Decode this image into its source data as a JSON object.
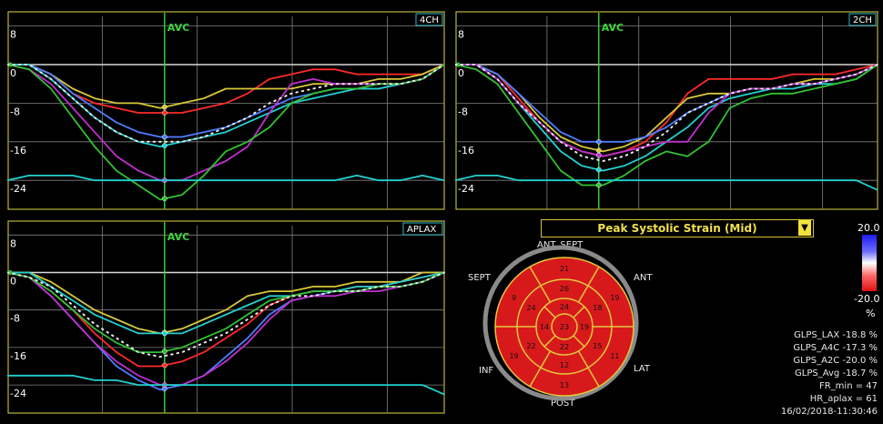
{
  "colors": {
    "frame": "#b9b53a",
    "grid": "#808080",
    "avc": "#39d83a",
    "bullseye_red": "#d8191c",
    "bullseye_line": "#e2c93c",
    "title_text": "#f0e04a"
  },
  "y_tick_labels": [
    "8",
    "0",
    "-8",
    "-16",
    "-24"
  ],
  "avc_label": "AVC",
  "views": {
    "four_ch": "4CH",
    "two_ch": "2CH",
    "aplax": "APLAX"
  },
  "bullseye": {
    "title": "Peak Systolic Strain (Mid)",
    "dropdown_icon": "dropdown-triangle-icon",
    "scale_max": "20.0",
    "scale_min": "-20.0",
    "scale_unit": "%",
    "walls": {
      "ant_sept": "ANT_SEPT",
      "sept": "SEPT",
      "ant": "ANT",
      "inf": "INF",
      "lat": "LAT",
      "post": "POST"
    },
    "segments": {
      "basal": [
        "21",
        "19",
        "11",
        "13",
        "19",
        "9"
      ],
      "mid": [
        "26",
        "18",
        "15",
        "12",
        "22",
        "24"
      ],
      "apical": [
        "24",
        "19",
        "22",
        "14"
      ],
      "apex": "23"
    }
  },
  "stats": [
    "GLPS_LAX  -18.8 %",
    "GLPS_A4C  -17.3 %",
    "GLPS_A2C  -20.0 %",
    "GLPS_Avg  -18.7 %",
    "FR_min = 47",
    "HR_aplax = 61",
    "16/02/2018-11:30:46"
  ],
  "chart_data": [
    {
      "type": "line",
      "view": "4CH",
      "ylim": [
        -30,
        10
      ],
      "yticks": [
        8,
        0,
        -8,
        -16,
        -24
      ],
      "x": [
        0,
        5,
        10,
        15,
        20,
        25,
        30,
        35,
        40,
        45,
        50,
        55,
        60,
        65,
        70,
        75,
        80,
        85,
        90,
        95,
        100
      ],
      "avc_x": 36,
      "series": [
        {
          "color": "#ff2a2a",
          "values": [
            0,
            0,
            -2,
            -6,
            -8,
            -9,
            -10,
            -10,
            -10,
            -9,
            -8,
            -6,
            -3,
            -2,
            -1,
            -1,
            -2,
            -2,
            -2,
            -2,
            0
          ]
        },
        {
          "color": "#d8c838",
          "values": [
            0,
            0,
            -2,
            -5,
            -7,
            -8,
            -8,
            -9,
            -8,
            -7,
            -5,
            -5,
            -5,
            -5,
            -4,
            -4,
            -4,
            -3,
            -3,
            -2,
            0
          ]
        },
        {
          "color": "#4f7dff",
          "values": [
            0,
            0,
            -2,
            -6,
            -9,
            -12,
            -14,
            -15,
            -15,
            -14,
            -13,
            -11,
            -9,
            -7,
            -6,
            -5,
            -5,
            -5,
            -4,
            -3,
            0
          ]
        },
        {
          "color": "#22d0d0",
          "values": [
            0,
            0,
            -3,
            -7,
            -11,
            -14,
            -16,
            -17,
            -16,
            -15,
            -14,
            -12,
            -10,
            -8,
            -7,
            -6,
            -5,
            -5,
            -4,
            -3,
            0
          ]
        },
        {
          "color": "#c12fd0",
          "values": [
            0,
            -1,
            -4,
            -9,
            -14,
            -19,
            -22,
            -24,
            -24,
            -22,
            -20,
            -17,
            -10,
            -4,
            -3,
            -4,
            -4,
            -4,
            -4,
            -3,
            0
          ]
        },
        {
          "color": "#31c231",
          "values": [
            0,
            -1,
            -5,
            -11,
            -17,
            -22,
            -25,
            -28,
            -27,
            -23,
            -18,
            -16,
            -13,
            -8,
            -6,
            -5,
            -5,
            -4,
            -4,
            -3,
            0
          ]
        },
        {
          "color": "#e8e8e8",
          "dotted": true,
          "values": [
            0,
            0,
            -3,
            -7,
            -11,
            -14,
            -16,
            -16,
            -16,
            -15,
            -13,
            -11,
            -8,
            -6,
            -5,
            -4,
            -4,
            -4,
            -4,
            -3,
            0
          ]
        },
        {
          "color": "#22d0d0",
          "values": [
            -24,
            -23,
            -23,
            -23,
            -24,
            -24,
            -24,
            -24,
            -24,
            -24,
            -24,
            -24,
            -24,
            -24,
            -24,
            -24,
            -23,
            -24,
            -24,
            -23,
            -24
          ]
        }
      ]
    },
    {
      "type": "line",
      "view": "2CH",
      "ylim": [
        -30,
        10
      ],
      "yticks": [
        8,
        0,
        -8,
        -16,
        -24
      ],
      "x": [
        0,
        5,
        10,
        15,
        20,
        25,
        30,
        35,
        40,
        45,
        50,
        55,
        60,
        65,
        70,
        75,
        80,
        85,
        90,
        95,
        100
      ],
      "avc_x": 34,
      "series": [
        {
          "color": "#ff2a2a",
          "values": [
            0,
            0,
            -2,
            -7,
            -12,
            -16,
            -18,
            -19,
            -18,
            -16,
            -12,
            -6,
            -3,
            -3,
            -3,
            -3,
            -2,
            -2,
            -2,
            -1,
            0
          ]
        },
        {
          "color": "#d8c838",
          "values": [
            0,
            0,
            -2,
            -6,
            -11,
            -15,
            -17,
            -18,
            -17,
            -15,
            -11,
            -7,
            -6,
            -6,
            -5,
            -5,
            -4,
            -3,
            -3,
            -2,
            0
          ]
        },
        {
          "color": "#4f7dff",
          "values": [
            0,
            0,
            -2,
            -6,
            -10,
            -14,
            -16,
            -16,
            -16,
            -15,
            -13,
            -10,
            -8,
            -6,
            -5,
            -5,
            -4,
            -4,
            -3,
            -2,
            0
          ]
        },
        {
          "color": "#22d0d0",
          "values": [
            0,
            0,
            -3,
            -8,
            -13,
            -18,
            -21,
            -22,
            -21,
            -19,
            -16,
            -13,
            -9,
            -7,
            -6,
            -5,
            -5,
            -4,
            -4,
            -3,
            0
          ]
        },
        {
          "color": "#c12fd0",
          "values": [
            0,
            0,
            -3,
            -8,
            -12,
            -16,
            -18,
            -19,
            -18,
            -17,
            -16,
            -16,
            -10,
            -6,
            -5,
            -5,
            -4,
            -4,
            -3,
            -2,
            0
          ]
        },
        {
          "color": "#31c231",
          "values": [
            0,
            -1,
            -4,
            -10,
            -16,
            -22,
            -25,
            -25,
            -23,
            -20,
            -18,
            -19,
            -16,
            -9,
            -7,
            -6,
            -6,
            -5,
            -4,
            -3,
            0
          ]
        },
        {
          "color": "#e8e8e8",
          "dotted": true,
          "values": [
            0,
            0,
            -3,
            -8,
            -12,
            -16,
            -19,
            -20,
            -19,
            -17,
            -14,
            -10,
            -8,
            -6,
            -5,
            -5,
            -4,
            -4,
            -3,
            -2,
            0
          ]
        },
        {
          "color": "#22d0d0",
          "values": [
            -24,
            -23,
            -23,
            -24,
            -24,
            -24,
            -24,
            -24,
            -24,
            -24,
            -24,
            -24,
            -24,
            -24,
            -24,
            -24,
            -24,
            -24,
            -24,
            -24,
            -26
          ]
        }
      ]
    },
    {
      "type": "line",
      "view": "APLAX",
      "ylim": [
        -30,
        10
      ],
      "yticks": [
        8,
        0,
        -8,
        -16,
        -24
      ],
      "x": [
        0,
        5,
        10,
        15,
        20,
        25,
        30,
        35,
        40,
        45,
        50,
        55,
        60,
        65,
        70,
        75,
        80,
        85,
        90,
        95,
        100
      ],
      "avc_x": 36,
      "series": [
        {
          "color": "#ff2a2a",
          "values": [
            0,
            -1,
            -4,
            -8,
            -13,
            -17,
            -20,
            -20,
            -19,
            -17,
            -14,
            -11,
            -7,
            -5,
            -4,
            -4,
            -3,
            -3,
            -2,
            -1,
            0
          ]
        },
        {
          "color": "#d8c838",
          "values": [
            0,
            0,
            -2,
            -5,
            -8,
            -10,
            -12,
            -13,
            -12,
            -10,
            -8,
            -5,
            -4,
            -4,
            -3,
            -3,
            -2,
            -2,
            -2,
            0,
            0
          ]
        },
        {
          "color": "#4f7dff",
          "values": [
            0,
            -1,
            -5,
            -10,
            -15,
            -20,
            -23,
            -25,
            -24,
            -22,
            -18,
            -14,
            -9,
            -6,
            -5,
            -4,
            -4,
            -3,
            -3,
            -2,
            0
          ]
        },
        {
          "color": "#22d0d0",
          "values": [
            0,
            0,
            -3,
            -6,
            -9,
            -11,
            -13,
            -13,
            -13,
            -11,
            -9,
            -7,
            -5,
            -5,
            -4,
            -4,
            -3,
            -3,
            -2,
            -1,
            0
          ]
        },
        {
          "color": "#c12fd0",
          "values": [
            0,
            -1,
            -5,
            -10,
            -15,
            -19,
            -22,
            -24,
            -24,
            -22,
            -19,
            -15,
            -10,
            -6,
            -5,
            -5,
            -4,
            -4,
            -3,
            -2,
            0
          ]
        },
        {
          "color": "#31c231",
          "values": [
            0,
            -1,
            -4,
            -8,
            -12,
            -15,
            -17,
            -17,
            -16,
            -14,
            -12,
            -9,
            -6,
            -5,
            -4,
            -4,
            -4,
            -3,
            -3,
            -2,
            0
          ]
        },
        {
          "color": "#e8e8e8",
          "dotted": true,
          "values": [
            0,
            -1,
            -3,
            -7,
            -11,
            -14,
            -17,
            -18,
            -17,
            -15,
            -13,
            -10,
            -7,
            -5,
            -5,
            -4,
            -4,
            -3,
            -3,
            -2,
            0
          ]
        },
        {
          "color": "#22d0d0",
          "values": [
            -22,
            -22,
            -22,
            -22,
            -23,
            -23,
            -24,
            -24,
            -24,
            -24,
            -24,
            -24,
            -24,
            -24,
            -24,
            -24,
            -24,
            -24,
            -24,
            -24,
            -26
          ]
        }
      ]
    }
  ]
}
